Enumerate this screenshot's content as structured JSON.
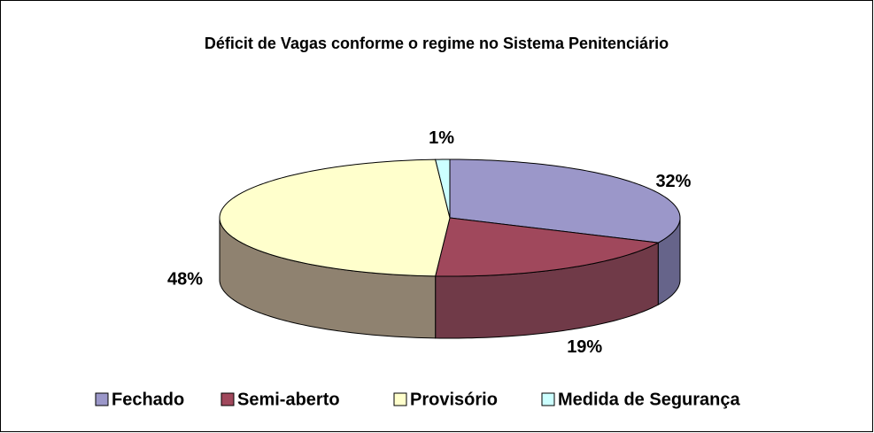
{
  "chart_data": {
    "type": "pie",
    "title": "Déficit de Vagas conforme o regime no Sistema Penitenciário",
    "categories": [
      "Fechado",
      "Semi-aberto",
      "Provisório",
      "Medida de Segurança"
    ],
    "values": [
      32,
      19,
      48,
      1
    ],
    "value_labels": [
      "32%",
      "19%",
      "48%",
      "1%"
    ],
    "colors": [
      "#9b97c9",
      "#a0485c",
      "#ffffcc",
      "#ccffff"
    ],
    "side_colors": [
      "#66648a",
      "#703a48",
      "#8f8270",
      "#88aaaa"
    ],
    "legend": "bottom"
  }
}
